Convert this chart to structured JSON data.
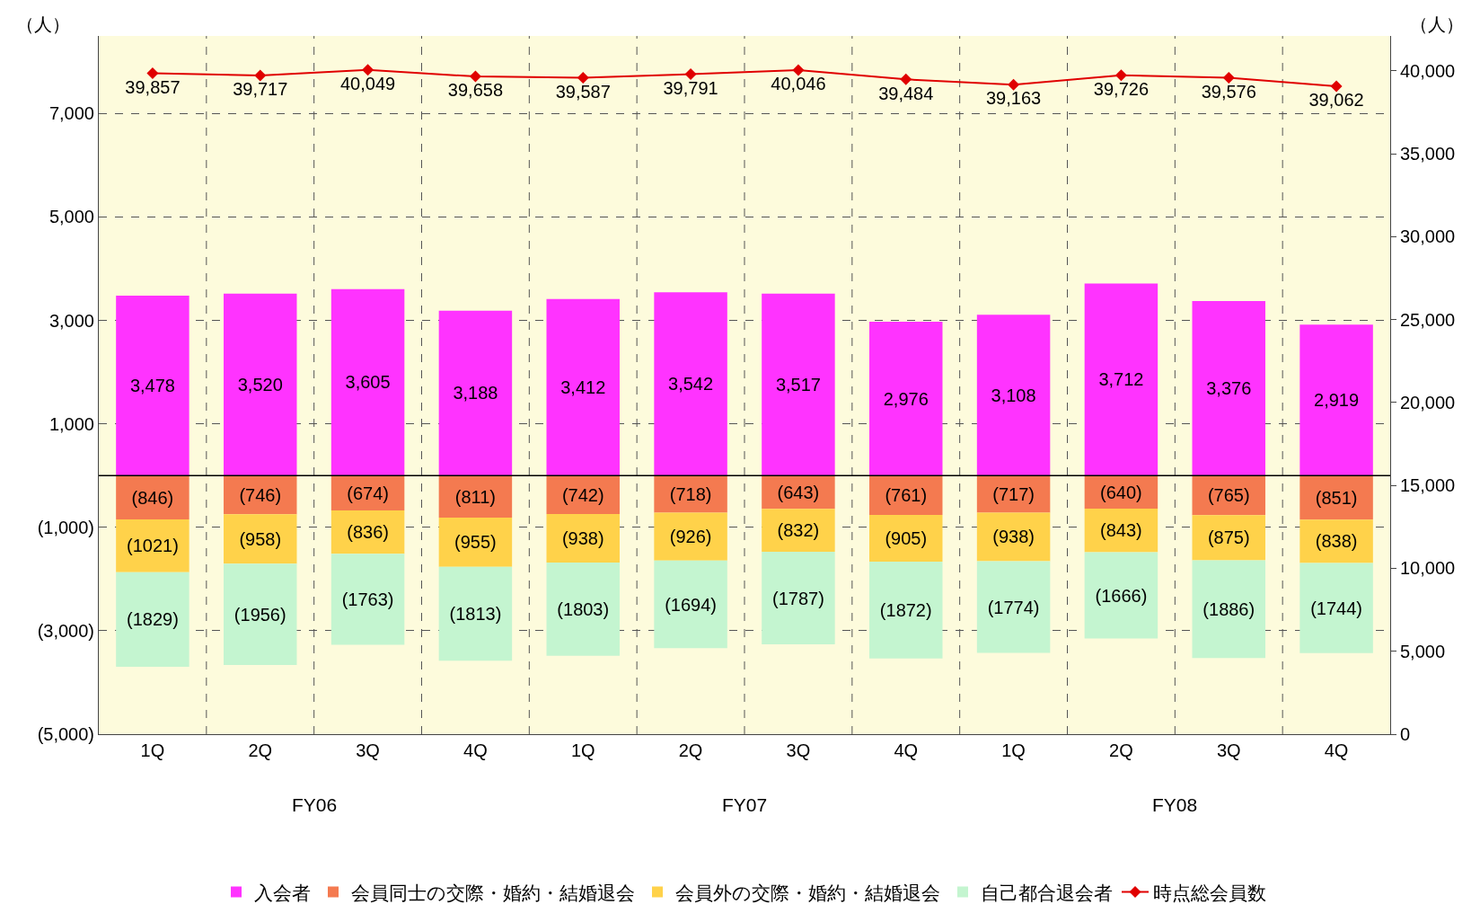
{
  "chart_data": {
    "type": "bar",
    "stacked": true,
    "categories": [
      "1Q",
      "2Q",
      "3Q",
      "4Q",
      "1Q",
      "2Q",
      "3Q",
      "4Q",
      "1Q",
      "2Q",
      "3Q",
      "4Q"
    ],
    "ylabel": "（人）",
    "y2label": "（人）",
    "ylim": [
      -5000,
      8500
    ],
    "yticks": [
      {
        "value": 7000,
        "label": "7,000"
      },
      {
        "value": 5000,
        "label": "5,000"
      },
      {
        "value": 3000,
        "label": "3,000"
      },
      {
        "value": 1000,
        "label": "1,000"
      },
      {
        "value": -1000,
        "label": "(1,000)"
      },
      {
        "value": -3000,
        "label": "(3,000)"
      },
      {
        "value": -5000,
        "label": "(5,000)"
      }
    ],
    "y2lim": [
      0,
      42100
    ],
    "y2ticks": [
      0,
      {
        "value": 5000,
        "label": "5,000"
      },
      {
        "value": 10000,
        "label": "10,000"
      },
      {
        "value": 15000,
        "label": "15,000"
      },
      {
        "value": 20000,
        "label": "20,000"
      },
      {
        "value": 25000,
        "label": "25,000"
      },
      {
        "value": 30000,
        "label": "30,000"
      },
      {
        "value": 35000,
        "label": "35,000"
      },
      {
        "value": 40000,
        "label": "40,000"
      }
    ],
    "grid": true,
    "legend": "bottom",
    "marker": "diamond",
    "annotations": [
      "FY06",
      "FY07",
      "FY08"
    ],
    "series": [
      {
        "name": "入会者",
        "color": "#ff33ff",
        "values": [
          3478,
          3520,
          3605,
          3188,
          3412,
          3542,
          3517,
          2976,
          3108,
          3712,
          3376,
          2919
        ],
        "value_labels": [
          "3,478",
          "3,520",
          "3,605",
          "3,188",
          "3,412",
          "3,542",
          "3,517",
          "2,976",
          "3,108",
          "3,712",
          "3,376",
          "2,919"
        ]
      },
      {
        "name": "会員同士の交際・婚約・結婚退会",
        "color": "#f47a50",
        "values": [
          -846,
          -746,
          -674,
          -811,
          -742,
          -718,
          -643,
          -761,
          -717,
          -640,
          -765,
          -851
        ],
        "value_labels": [
          "(846)",
          "(746)",
          "(674)",
          "(811)",
          "(742)",
          "(718)",
          "(643)",
          "(761)",
          "(717)",
          "(640)",
          "(765)",
          "(851)"
        ]
      },
      {
        "name": "会員外の交際・婚約・結婚退会",
        "color": "#ffd24a",
        "values": [
          -1021,
          -958,
          -836,
          -955,
          -938,
          -926,
          -832,
          -905,
          -938,
          -843,
          -875,
          -838
        ],
        "value_labels": [
          "(1021)",
          "(958)",
          "(836)",
          "(955)",
          "(938)",
          "(926)",
          "(832)",
          "(905)",
          "(938)",
          "(843)",
          "(875)",
          "(838)"
        ]
      },
      {
        "name": "自己都合退会者",
        "color": "#c4f5d0",
        "values": [
          -1829,
          -1956,
          -1763,
          -1813,
          -1803,
          -1694,
          -1787,
          -1872,
          -1774,
          -1666,
          -1886,
          -1744
        ],
        "value_labels": [
          "(1829)",
          "(1956)",
          "(1763)",
          "(1813)",
          "(1803)",
          "(1694)",
          "(1787)",
          "(1872)",
          "(1774)",
          "(1666)",
          "(1886)",
          "(1744)"
        ]
      },
      {
        "name": "時点総会員数",
        "type": "line",
        "axis": "y2",
        "color": "#e00000",
        "values": [
          39857,
          39717,
          40049,
          39658,
          39587,
          39791,
          40046,
          39484,
          39163,
          39726,
          39576,
          39062
        ],
        "value_labels": [
          "39,857",
          "39,717",
          "40,049",
          "39,658",
          "39,587",
          "39,791",
          "40,046",
          "39,484",
          "39,163",
          "39,726",
          "39,576",
          "39,062"
        ]
      }
    ]
  }
}
